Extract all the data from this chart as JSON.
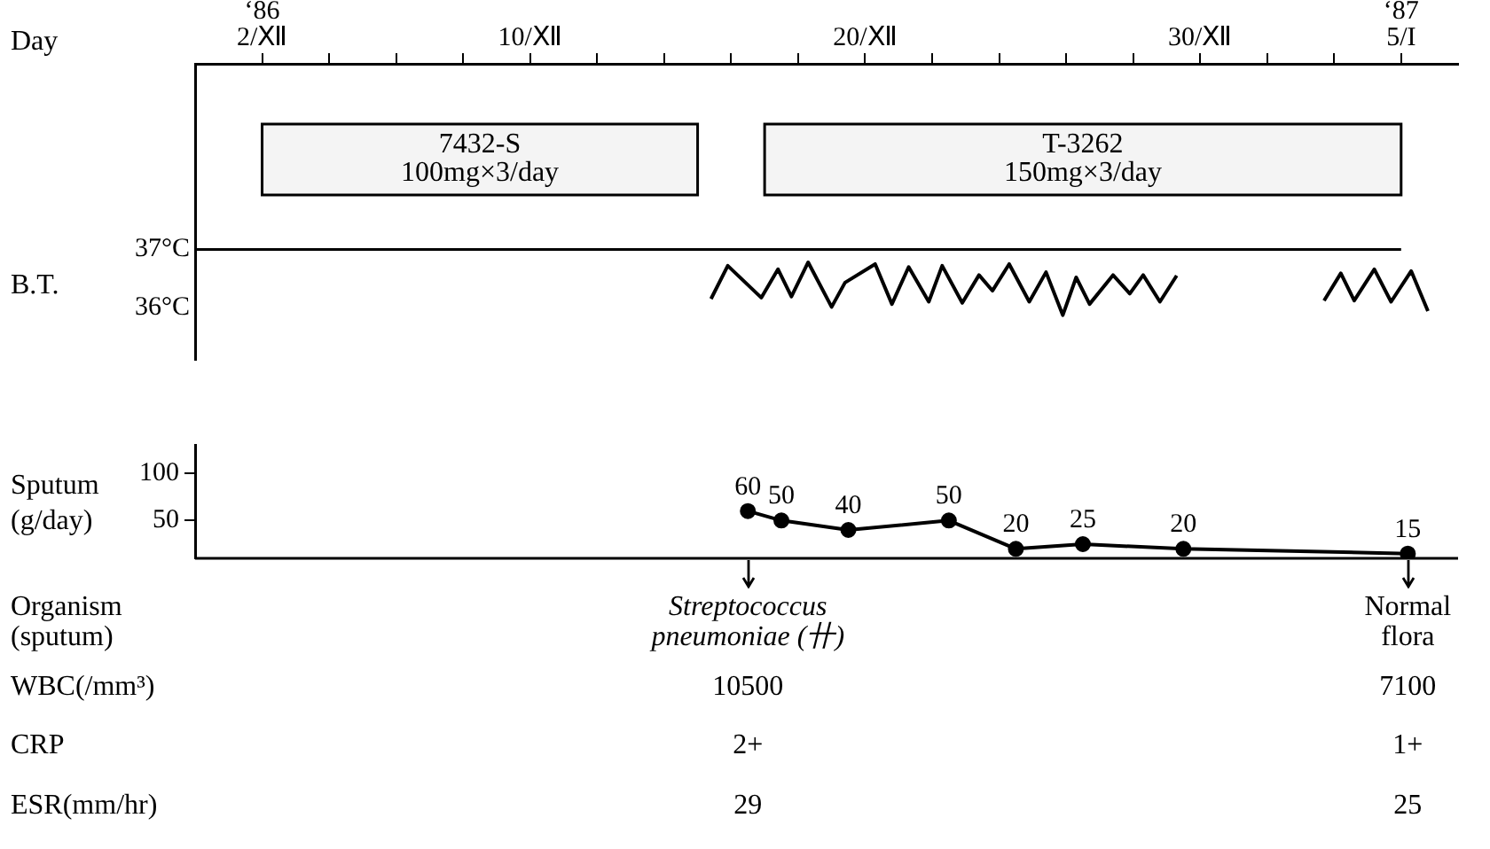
{
  "chart_data": [
    {
      "type": "line",
      "xlabel": "Day",
      "ylabel": "B.T.",
      "xlim": [
        0,
        37.7
      ],
      "xticks": [
        {
          "value": 2,
          "label": "‘86\n2/Ⅻ"
        },
        {
          "value": 4,
          "label": null
        },
        {
          "value": 6,
          "label": null
        },
        {
          "value": 8,
          "label": null
        },
        {
          "value": 10,
          "label": "10/Ⅻ"
        },
        {
          "value": 12,
          "label": null
        },
        {
          "value": 14,
          "label": null
        },
        {
          "value": 16,
          "label": null
        },
        {
          "value": 18,
          "label": null
        },
        {
          "value": 20,
          "label": "20/Ⅻ"
        },
        {
          "value": 22,
          "label": null
        },
        {
          "value": 24,
          "label": null
        },
        {
          "value": 26,
          "label": null
        },
        {
          "value": 28,
          "label": null
        },
        {
          "value": 30,
          "label": "30/Ⅻ"
        },
        {
          "value": 32,
          "label": null
        },
        {
          "value": 34,
          "label": null
        },
        {
          "value": 36,
          "label": "‘87\n5/I"
        }
      ],
      "ylim": [
        35.1,
        40.2
      ],
      "yticks": [
        {
          "value": 36,
          "label": "36°C"
        },
        {
          "value": 37,
          "label": "37°C"
        }
      ],
      "series": [
        {
          "color": "#000000",
          "marker": "none",
          "x": [
            15.4,
            15.9,
            16.9,
            17.4,
            17.8,
            18.3,
            19.0,
            19.4,
            20.3,
            20.8,
            21.3,
            21.9,
            22.3,
            22.9,
            23.4,
            23.8,
            24.3,
            24.9,
            25.4,
            25.9,
            26.3,
            26.7,
            27.4,
            27.9,
            28.3,
            28.8,
            29.3,
            31.5,
            33.7,
            34.2,
            34.6,
            35.2,
            35.7,
            36.3,
            36.8
          ],
          "values": [
            36.15,
            36.72,
            36.17,
            36.66,
            36.19,
            36.78,
            36.01,
            36.43,
            36.75,
            36.06,
            36.7,
            36.1,
            36.72,
            36.08,
            36.56,
            36.29,
            36.75,
            36.1,
            36.61,
            35.87,
            36.52,
            36.06,
            36.56,
            36.24,
            36.56,
            36.1,
            36.55,
            null,
            36.12,
            36.59,
            36.12,
            36.66,
            36.1,
            36.63,
            35.94
          ]
        }
      ],
      "bands": [
        {
          "axis": "x",
          "from": 2,
          "to": 15,
          "label": "7432-S\n100mg×3/day",
          "color": "#f4f4f4"
        },
        {
          "axis": "x",
          "from": 17,
          "to": 36,
          "label": "T-3262\n150mg×3/day",
          "color": "#f4f4f4"
        }
      ],
      "ref_lines": [
        {
          "axis": "y",
          "value": 37
        }
      ],
      "grid": false,
      "legend": false
    },
    {
      "type": "line",
      "ylabel": "Sputum\n(g/day)",
      "tick_labels": "y",
      "xlim": [
        0,
        37.7
      ],
      "ylim": [
        10,
        130
      ],
      "yticks": [
        50,
        100
      ],
      "series": [
        {
          "color": "#000000",
          "marker": "circle",
          "x": [
            16.5,
            17.5,
            19.5,
            22.5,
            24.5,
            26.5,
            29.5,
            36.2
          ],
          "values": [
            60,
            50,
            40,
            50,
            20,
            25,
            20,
            15
          ],
          "value_labels": [
            "60",
            "50",
            "40",
            "50",
            "20",
            "25",
            "20",
            "15"
          ]
        }
      ],
      "annotations": [
        "Organism\n(sputum)",
        "Streptococcus\npneumoniae (卄)",
        "Normal\nflora",
        "WBC(/mm³)",
        "10500",
        "7100",
        "CRP",
        "2+",
        "1+",
        "ESR(mm/hr)",
        "29",
        "25"
      ],
      "grid": false,
      "legend": false
    }
  ]
}
